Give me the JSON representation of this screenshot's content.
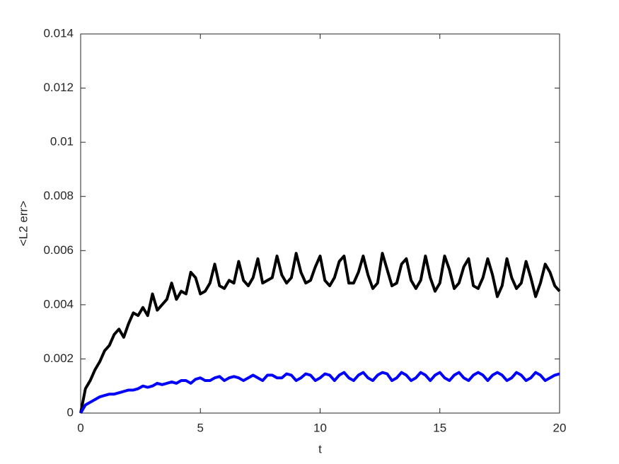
{
  "chart_data": {
    "type": "line",
    "xlabel": "t",
    "ylabel": "<L2 err>",
    "x": [
      0,
      0.2,
      0.4,
      0.6,
      0.8,
      1,
      1.2,
      1.4,
      1.6,
      1.8,
      2,
      2.2,
      2.4,
      2.6,
      2.8,
      3,
      3.2,
      3.4,
      3.6,
      3.8,
      4,
      4.2,
      4.4,
      4.6,
      4.8,
      5,
      5.2,
      5.4,
      5.6,
      5.8,
      6,
      6.2,
      6.4,
      6.6,
      6.8,
      7,
      7.2,
      7.4,
      7.6,
      7.8,
      8,
      8.2,
      8.4,
      8.6,
      8.8,
      9,
      9.2,
      9.4,
      9.6,
      9.8,
      10,
      10.2,
      10.4,
      10.6,
      10.8,
      11,
      11.2,
      11.4,
      11.6,
      11.8,
      12,
      12.2,
      12.4,
      12.6,
      12.8,
      13,
      13.2,
      13.4,
      13.6,
      13.8,
      14,
      14.2,
      14.4,
      14.6,
      14.8,
      15,
      15.2,
      15.4,
      15.6,
      15.8,
      16,
      16.2,
      16.4,
      16.6,
      16.8,
      17,
      17.2,
      17.4,
      17.6,
      17.8,
      18,
      18.2,
      18.4,
      18.6,
      18.8,
      19,
      19.2,
      19.4,
      19.6,
      19.8,
      20
    ],
    "series": [
      {
        "color": "#000000",
        "values": [
          0,
          0.0009,
          0.0012,
          0.0016,
          0.0019,
          0.0023,
          0.0025,
          0.0029,
          0.0031,
          0.0028,
          0.0033,
          0.0037,
          0.0036,
          0.0039,
          0.0036,
          0.0044,
          0.0038,
          0.004,
          0.0042,
          0.0048,
          0.0042,
          0.0045,
          0.0044,
          0.0052,
          0.005,
          0.0044,
          0.0045,
          0.0048,
          0.0055,
          0.0047,
          0.0046,
          0.0049,
          0.0048,
          0.0056,
          0.0049,
          0.0047,
          0.005,
          0.0057,
          0.0048,
          0.0049,
          0.005,
          0.0058,
          0.0051,
          0.0048,
          0.005,
          0.0059,
          0.0052,
          0.0048,
          0.0049,
          0.0054,
          0.0058,
          0.0049,
          0.0047,
          0.005,
          0.0056,
          0.0058,
          0.0048,
          0.0048,
          0.0052,
          0.0058,
          0.0051,
          0.0046,
          0.0048,
          0.0059,
          0.0053,
          0.0047,
          0.0048,
          0.0055,
          0.0057,
          0.0049,
          0.0046,
          0.0049,
          0.0058,
          0.005,
          0.0045,
          0.0048,
          0.0058,
          0.0053,
          0.0046,
          0.0048,
          0.0054,
          0.0057,
          0.0047,
          0.0046,
          0.005,
          0.0057,
          0.0051,
          0.0043,
          0.0047,
          0.0057,
          0.005,
          0.0046,
          0.0048,
          0.0056,
          0.005,
          0.0043,
          0.0048,
          0.0055,
          0.0052,
          0.0047,
          0.0045
        ]
      },
      {
        "color": "#0000ff",
        "values": [
          0,
          0.0003,
          0.0004,
          0.0005,
          0.0006,
          0.00065,
          0.0007,
          0.0007,
          0.00075,
          0.0008,
          0.00085,
          0.00085,
          0.0009,
          0.001,
          0.00095,
          0.001,
          0.0011,
          0.00105,
          0.0011,
          0.00115,
          0.0011,
          0.0012,
          0.0012,
          0.0011,
          0.00125,
          0.0013,
          0.0012,
          0.0012,
          0.0013,
          0.00135,
          0.0012,
          0.0013,
          0.00135,
          0.0013,
          0.0012,
          0.0013,
          0.0014,
          0.0013,
          0.0012,
          0.0014,
          0.0014,
          0.0013,
          0.0013,
          0.00145,
          0.0014,
          0.0012,
          0.0013,
          0.00145,
          0.0014,
          0.0012,
          0.0013,
          0.00145,
          0.0014,
          0.0012,
          0.0014,
          0.0015,
          0.0013,
          0.0012,
          0.0014,
          0.0015,
          0.0013,
          0.0012,
          0.0014,
          0.0015,
          0.00145,
          0.0012,
          0.0013,
          0.0015,
          0.0014,
          0.0012,
          0.0013,
          0.0015,
          0.0014,
          0.0012,
          0.0014,
          0.0015,
          0.0013,
          0.0012,
          0.0014,
          0.0015,
          0.0013,
          0.0012,
          0.0014,
          0.0015,
          0.0014,
          0.0012,
          0.0014,
          0.0015,
          0.0014,
          0.0012,
          0.0013,
          0.0015,
          0.0014,
          0.0012,
          0.0013,
          0.0015,
          0.0014,
          0.0012,
          0.0013,
          0.0014,
          0.00145
        ]
      }
    ],
    "xlim": [
      0,
      20
    ],
    "xticks": [
      0,
      5,
      10,
      15,
      20
    ],
    "ylim": [
      0,
      0.014
    ],
    "yticks": [
      0,
      0.002,
      0.004,
      0.006,
      0.008,
      0.01,
      0.012,
      0.014
    ]
  }
}
